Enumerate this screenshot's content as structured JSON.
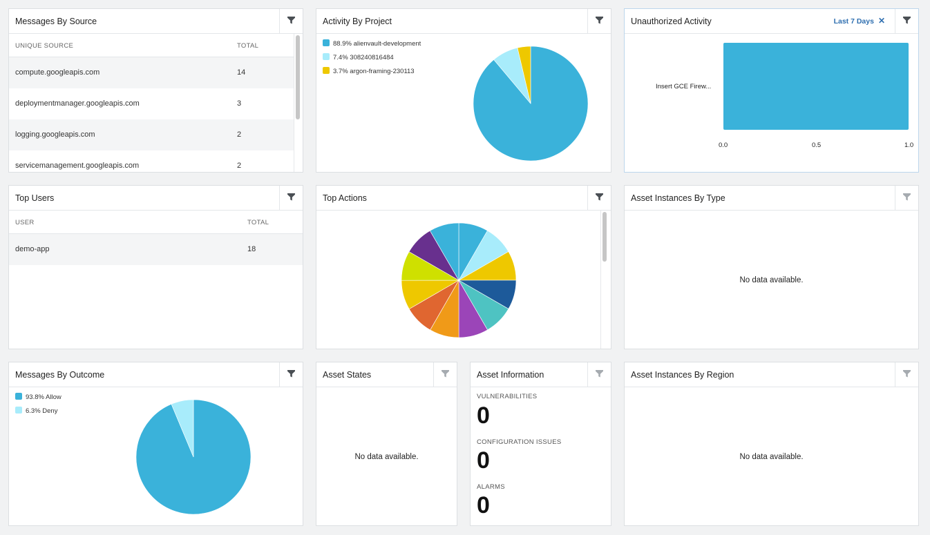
{
  "colors": {
    "accent": "#3ab2da",
    "light": "#a8ecfb",
    "yellow": "#eec800",
    "link": "#2f6fb0"
  },
  "messages_by_source": {
    "title": "Messages By Source",
    "filter_icon": "filter-icon",
    "columns": [
      "UNIQUE SOURCE",
      "TOTAL"
    ],
    "rows": [
      {
        "source": "compute.googleapis.com",
        "total": "14"
      },
      {
        "source": "deploymentmanager.googleapis.com",
        "total": "3"
      },
      {
        "source": "logging.googleapis.com",
        "total": "2"
      },
      {
        "source": "servicemanagement.googleapis.com",
        "total": "2"
      }
    ]
  },
  "activity_by_project": {
    "title": "Activity By Project",
    "legend": [
      "88.9% alienvault-development",
      "7.4% 308240816484",
      "3.7% argon-framing-230113"
    ]
  },
  "unauthorized_activity": {
    "title": "Unauthorized Activity",
    "filter_tag": "Last 7 Days",
    "filter_tag_close": "✕",
    "bar_label": "Insert GCE Firew...",
    "ticks": [
      "0.0",
      "0.5",
      "1.0"
    ]
  },
  "top_users": {
    "title": "Top Users",
    "columns": [
      "USER",
      "TOTAL"
    ],
    "rows": [
      {
        "user": "demo-app",
        "total": "18"
      }
    ]
  },
  "top_actions": {
    "title": "Top Actions"
  },
  "asset_instances_by_type": {
    "title": "Asset Instances By Type",
    "empty": "No data available."
  },
  "messages_by_outcome": {
    "title": "Messages By Outcome",
    "legend": [
      "93.8% Allow",
      "6.3% Deny"
    ]
  },
  "asset_states": {
    "title": "Asset States",
    "empty": "No data available."
  },
  "asset_information": {
    "title": "Asset Information",
    "vuln_label": "VULNERABILITIES",
    "vuln_value": "0",
    "config_label": "CONFIGURATION ISSUES",
    "config_value": "0",
    "alarms_label": "ALARMS",
    "alarms_value": "0"
  },
  "asset_instances_by_region": {
    "title": "Asset Instances By Region",
    "empty": "No data available."
  },
  "chart_data": [
    {
      "type": "pie",
      "title": "Activity By Project",
      "categories": [
        "alienvault-development",
        "308240816484",
        "argon-framing-230113"
      ],
      "values": [
        88.9,
        7.4,
        3.7
      ],
      "colors": [
        "#3ab2da",
        "#a8ecfb",
        "#eec800"
      ],
      "legend": "top-left"
    },
    {
      "type": "bar",
      "orientation": "horizontal",
      "title": "Unauthorized Activity",
      "categories": [
        "Insert GCE Firew..."
      ],
      "values": [
        1.0
      ],
      "xlim": [
        0,
        1.0
      ],
      "xticks": [
        "0.0",
        "0.5",
        "1.0"
      ],
      "colors": [
        "#3ab2da"
      ]
    },
    {
      "type": "pie",
      "title": "Top Actions",
      "categories": [
        "",
        "",
        "",
        "",
        "",
        "",
        "",
        "",
        "",
        "",
        "",
        ""
      ],
      "values": [
        8.33,
        8.33,
        8.33,
        8.33,
        8.33,
        8.33,
        8.33,
        8.33,
        8.33,
        8.33,
        8.33,
        8.37
      ],
      "colors": [
        "#3ab2da",
        "#a8ecfb",
        "#eec800",
        "#1d5a9a",
        "#4ec3c2",
        "#9b45b8",
        "#f09a18",
        "#e06630",
        "#eec800",
        "#cfe000",
        "#68308e",
        "#3ab2da"
      ],
      "legend": "none"
    },
    {
      "type": "pie",
      "title": "Messages By Outcome",
      "categories": [
        "Allow",
        "Deny"
      ],
      "values": [
        93.8,
        6.3
      ],
      "colors": [
        "#3ab2da",
        "#a8ecfb"
      ],
      "legend": "top-left"
    }
  ]
}
